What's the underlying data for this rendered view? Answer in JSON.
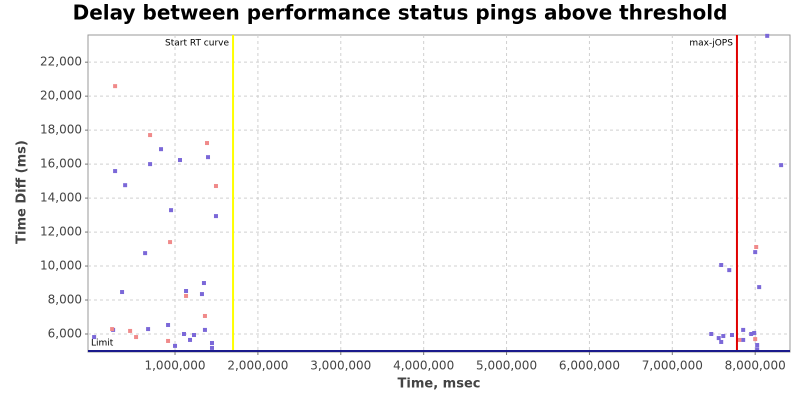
{
  "chart_data": {
    "type": "scatter",
    "title": "Delay between performance status pings above threshold",
    "x_label": "Time, msec",
    "y_label": "Time Diff (ms)",
    "xlim": [
      -50000,
      8420000
    ],
    "ylim": [
      4940,
      23600
    ],
    "xticks": [
      {
        "value": 1000000,
        "label": "1,000,000"
      },
      {
        "value": 2000000,
        "label": "2,000,000"
      },
      {
        "value": 3000000,
        "label": "3,000,000"
      },
      {
        "value": 4000000,
        "label": "4,000,000"
      },
      {
        "value": 5000000,
        "label": "5,000,000"
      },
      {
        "value": 6000000,
        "label": "6,000,000"
      },
      {
        "value": 7000000,
        "label": "7,000,000"
      },
      {
        "value": 8000000,
        "label": "8,000,000"
      }
    ],
    "yticks": [
      {
        "value": 6000,
        "label": "6,000"
      },
      {
        "value": 8000,
        "label": "8,000"
      },
      {
        "value": 10000,
        "label": "10,000"
      },
      {
        "value": 12000,
        "label": "12,000"
      },
      {
        "value": 14000,
        "label": "14,000"
      },
      {
        "value": 16000,
        "label": "16,000"
      },
      {
        "value": 18000,
        "label": "18,000"
      },
      {
        "value": 20000,
        "label": "20,000"
      },
      {
        "value": 22000,
        "label": "22,000"
      }
    ],
    "grid": true,
    "series": [
      {
        "color": "#7b68d8",
        "x": [
          24000,
          253000,
          277000,
          398000,
          361000,
          675000,
          639000,
          699000,
          831000,
          916000,
          952000,
          1060000,
          1108000,
          1133000,
          1181000,
          1229000,
          1325000,
          1349000,
          1361000,
          1398000,
          1446000,
          1494000,
          1446000,
          1000000,
          7470000,
          7590000,
          7687000,
          7560000,
          7590000,
          7615000,
          7720000,
          7855000,
          7855000,
          7952000,
          7988000,
          8024000,
          8048000,
          8000000,
          8145000,
          8313000,
          8024000
        ],
        "values": [
          5820,
          6240,
          15590,
          14760,
          8470,
          6290,
          10760,
          16000,
          16880,
          6530,
          13290,
          16240,
          6000,
          8530,
          5650,
          5940,
          8350,
          9000,
          6240,
          16410,
          5470,
          12940,
          5180,
          5300,
          6000,
          10060,
          9760,
          5760,
          5530,
          5880,
          5940,
          6240,
          5650,
          6000,
          6060,
          5350,
          8760,
          10820,
          23550,
          15940,
          5100
        ]
      },
      {
        "color": "#f08a8a",
        "x": [
          277000,
          241000,
          458000,
          530000,
          699000,
          916000,
          940000,
          1133000,
          1386000,
          1361000,
          1494000,
          8012000,
          7807000,
          8000000
        ],
        "values": [
          20590,
          6290,
          6180,
          5820,
          17710,
          5590,
          11410,
          8240,
          17240,
          7060,
          14710,
          11120,
          5650,
          5700
        ]
      }
    ],
    "reference_lines": [
      {
        "label": "Start RT curve",
        "x": 1700000,
        "color": "#ffff00"
      },
      {
        "label": "max-jOPS",
        "x": 7780000,
        "color": "#e00000"
      }
    ],
    "threshold": {
      "label": "Limit",
      "value": 5000,
      "color": "#1a1a8c"
    }
  }
}
